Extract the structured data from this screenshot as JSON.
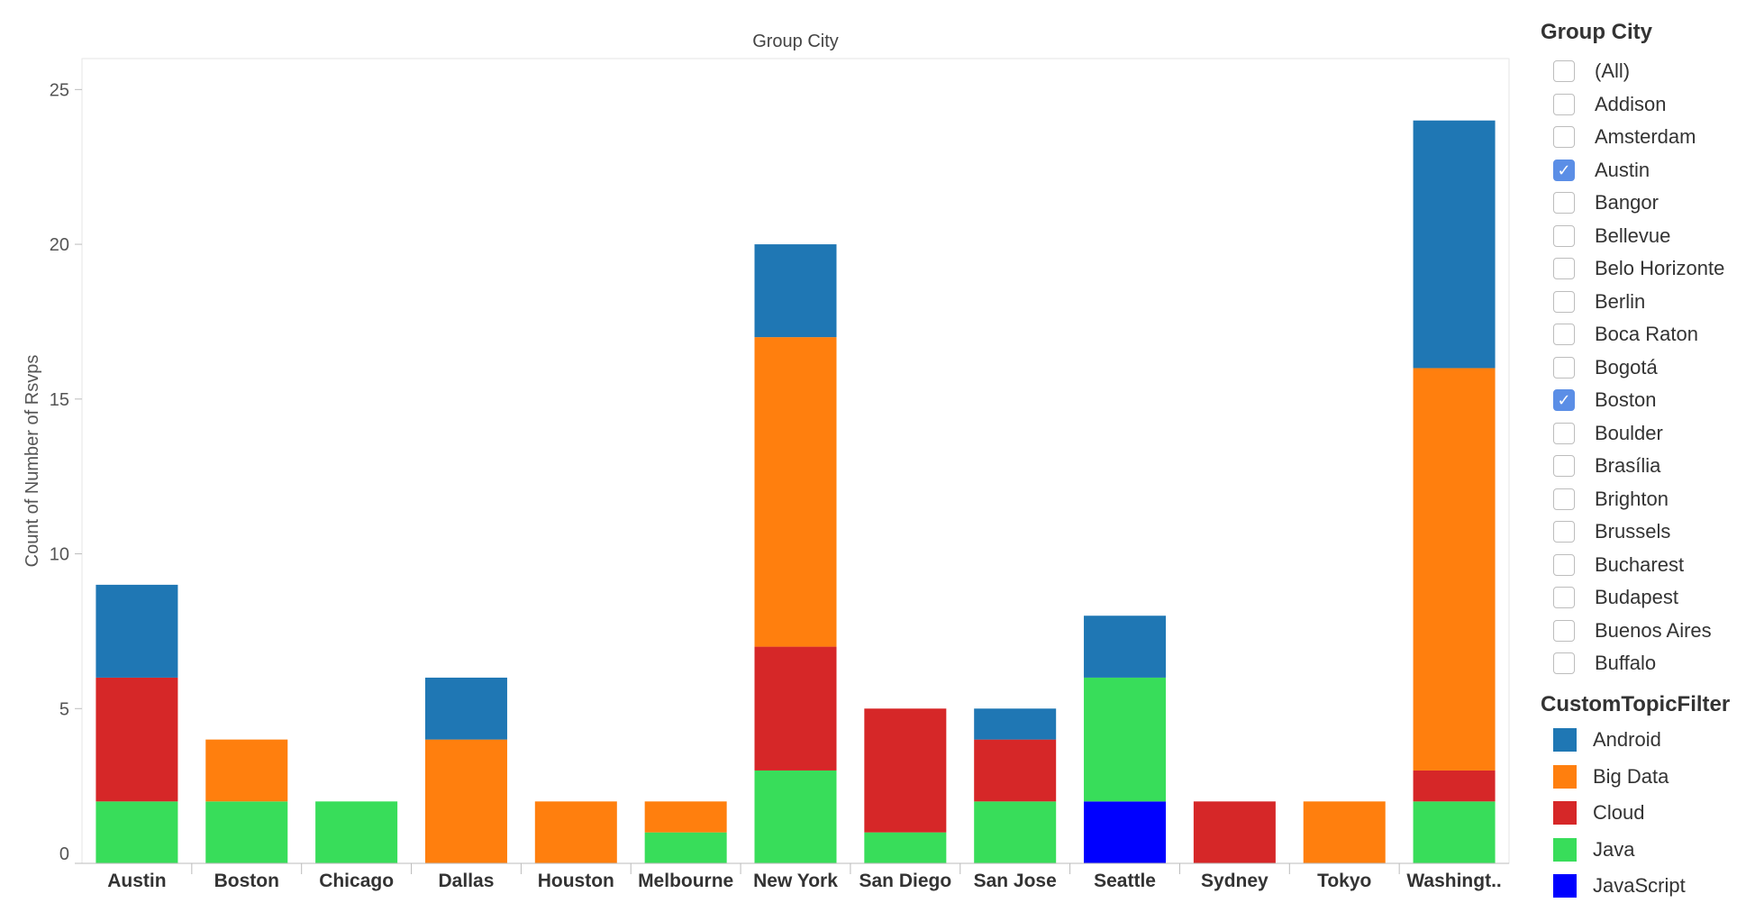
{
  "chart_data": {
    "type": "bar",
    "stacked": true,
    "title": "Group City",
    "xlabel": "",
    "ylabel": "Count of Number of Rsvps",
    "ylim": [
      0,
      26
    ],
    "yticks": [
      0,
      5,
      10,
      15,
      20,
      25
    ],
    "grid": false,
    "legend_position": "right",
    "categories": [
      "Austin",
      "Boston",
      "Chicago",
      "Dallas",
      "Houston",
      "Melbourne",
      "New York",
      "San Diego",
      "San Jose",
      "Seattle",
      "Sydney",
      "Tokyo",
      "Washingt.."
    ],
    "series": [
      {
        "name": "JavaScript",
        "color": "#0000ff",
        "values": [
          0,
          0,
          0,
          0,
          0,
          0,
          0,
          0,
          0,
          2,
          0,
          0,
          0
        ]
      },
      {
        "name": "Java",
        "color": "#38dd5a",
        "values": [
          2,
          2,
          2,
          0,
          0,
          1,
          3,
          1,
          2,
          4,
          0,
          0,
          2
        ]
      },
      {
        "name": "Cloud",
        "color": "#d62728",
        "values": [
          4,
          0,
          0,
          0,
          0,
          0,
          4,
          4,
          2,
          0,
          2,
          0,
          1
        ]
      },
      {
        "name": "Big Data",
        "color": "#ff7f0e",
        "values": [
          0,
          2,
          0,
          4,
          2,
          1,
          10,
          0,
          0,
          0,
          0,
          2,
          13
        ]
      },
      {
        "name": "Android",
        "color": "#1f77b4",
        "values": [
          3,
          0,
          0,
          2,
          0,
          0,
          3,
          0,
          1,
          2,
          0,
          0,
          8
        ]
      }
    ]
  },
  "filter": {
    "title": "Group City",
    "items": [
      {
        "label": "(All)",
        "checked": false
      },
      {
        "label": "Addison",
        "checked": false
      },
      {
        "label": "Amsterdam",
        "checked": false
      },
      {
        "label": "Austin",
        "checked": true
      },
      {
        "label": "Bangor",
        "checked": false
      },
      {
        "label": "Bellevue",
        "checked": false
      },
      {
        "label": "Belo Horizonte",
        "checked": false
      },
      {
        "label": "Berlin",
        "checked": false
      },
      {
        "label": "Boca Raton",
        "checked": false
      },
      {
        "label": "Bogotá",
        "checked": false
      },
      {
        "label": "Boston",
        "checked": true
      },
      {
        "label": "Boulder",
        "checked": false
      },
      {
        "label": "Brasília",
        "checked": false
      },
      {
        "label": "Brighton",
        "checked": false
      },
      {
        "label": "Brussels",
        "checked": false
      },
      {
        "label": "Bucharest",
        "checked": false
      },
      {
        "label": "Budapest",
        "checked": false
      },
      {
        "label": "Buenos Aires",
        "checked": false
      },
      {
        "label": "Buffalo",
        "checked": false
      }
    ]
  },
  "legend": {
    "title": "CustomTopicFilter",
    "items": [
      {
        "label": "Android",
        "color": "#1f77b4"
      },
      {
        "label": "Big Data",
        "color": "#ff7f0e"
      },
      {
        "label": "Cloud",
        "color": "#d62728"
      },
      {
        "label": "Java",
        "color": "#38dd5a"
      },
      {
        "label": "JavaScript",
        "color": "#0000ff"
      }
    ]
  }
}
